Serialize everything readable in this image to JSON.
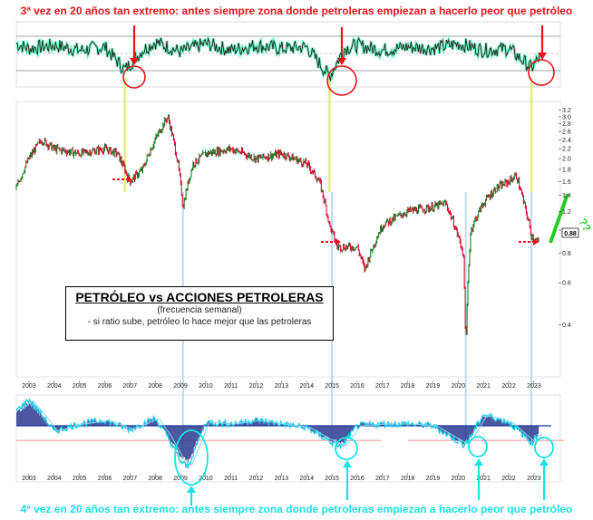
{
  "top_annotation": "3ª vez en 20 años tan extremo: antes siempre zona donde petroleras empiezan a hacerlo peor que petróleo",
  "bottom_annotation": "4ª vez en 20 años tan extremo: antes siempre zona donde petroleras empiezan a hacerlo peor que petróleo",
  "legend": {
    "title": "PETRÓLEO vs ACCIONES PETROLERAS",
    "line1": "(frecuencia semanal)",
    "line2": "- si ratio sube, petróleo lo hace mejor que las petroleras"
  },
  "last_value_label": "0.88",
  "question_marks": "??",
  "colors": {
    "top_annotation": "#e8141b",
    "bottom_annotation": "#19e3e3",
    "arrow_red": "#e8141b",
    "arrow_cyan": "#19e3e3",
    "yellow_line": "#e6ee8a",
    "blue_line": "#b8dcef",
    "green_projection": "#22cc22",
    "candle_up": "#1f7a1f",
    "candle_down": "#d0103a",
    "oscillator_fill": "#2b3a8f",
    "oscillator_line": "#1ec8e6",
    "threshold_line": "#f4a0a0",
    "top_osc_line": "#1a2a1a",
    "top_osc_fill": "#3ee8b0"
  },
  "chart_data": [
    {
      "type": "line",
      "name": "top-oscillator",
      "x": [
        2002.5,
        2003,
        2004,
        2005,
        2006,
        2006.8,
        2007.5,
        2008,
        2009,
        2010,
        2011,
        2012,
        2013,
        2014,
        2014.9,
        2015.5,
        2016,
        2017,
        2018,
        2019,
        2020,
        2021,
        2022,
        2022.9,
        2023.2
      ],
      "y": [
        0.6,
        0.3,
        0.5,
        0.2,
        0.4,
        -1.0,
        0.2,
        0.7,
        0.1,
        0.6,
        0.2,
        0.5,
        0.3,
        0.4,
        -1.4,
        0.3,
        0.5,
        0.2,
        0.4,
        0.3,
        0.6,
        0.2,
        0.3,
        -0.9,
        -0.3
      ],
      "xlim": [
        2002.5,
        2023.4
      ]
    },
    {
      "type": "line",
      "name": "oil-vs-oil-stocks-ratio",
      "x": [
        2002.5,
        2003,
        2003.5,
        2004,
        2005,
        2006,
        2006.5,
        2007,
        2007.5,
        2008,
        2008.5,
        2008.9,
        2009.1,
        2009.5,
        2010,
        2011,
        2012,
        2013,
        2014,
        2014.5,
        2014.9,
        2015.2,
        2016,
        2016.3,
        2017,
        2018,
        2019,
        2019.5,
        2020.2,
        2020.3,
        2020.5,
        2021,
        2021.5,
        2022,
        2022.3,
        2022.6,
        2022.9,
        2023.2
      ],
      "y": [
        1.5,
        2.0,
        2.4,
        2.2,
        2.1,
        2.2,
        2.1,
        1.6,
        1.8,
        2.4,
        3.0,
        1.9,
        1.25,
        1.9,
        2.1,
        2.2,
        2.0,
        2.1,
        1.9,
        1.6,
        1.05,
        0.85,
        0.85,
        0.68,
        1.05,
        1.2,
        1.25,
        1.3,
        0.8,
        0.3,
        1.0,
        1.3,
        1.5,
        1.6,
        1.7,
        1.3,
        0.95,
        0.88
      ],
      "yticks": [
        0.4,
        0.6,
        0.8,
        1.0,
        1.2,
        1.4,
        1.6,
        1.8,
        2.0,
        2.2,
        2.4,
        2.6,
        2.8,
        3.0,
        3.2
      ],
      "ylim": [
        0.25,
        3.3
      ],
      "scale": "log"
    },
    {
      "type": "area",
      "name": "bottom-oscillator",
      "x": [
        2002.5,
        2003,
        2003.5,
        2004,
        2005,
        2006,
        2007,
        2008,
        2008.5,
        2009,
        2009.3,
        2010,
        2011,
        2012,
        2013,
        2014,
        2015,
        2015.4,
        2016,
        2017,
        2018,
        2019,
        2020.2,
        2020.4,
        2021,
        2022,
        2022.9,
        2023.2
      ],
      "y": [
        0.8,
        1.4,
        0.6,
        -0.3,
        0.1,
        0.3,
        -0.2,
        0.4,
        -0.6,
        -1.9,
        -2.2,
        0.2,
        0.1,
        0.3,
        0.1,
        -0.1,
        -0.9,
        -1.1,
        0.0,
        0.1,
        0.1,
        0.0,
        -1.0,
        -0.8,
        0.6,
        0.2,
        -0.9,
        -0.4
      ],
      "threshold": -0.9,
      "ylim": [
        -2.6,
        1.8
      ]
    }
  ],
  "x_axis_years": [
    "2003",
    "2004",
    "2005",
    "2006",
    "2007",
    "2008",
    "2009",
    "2010",
    "2011",
    "2012",
    "2013",
    "2014",
    "2015",
    "2016",
    "2017",
    "2018",
    "2019",
    "2020",
    "2021",
    "2022",
    "2023"
  ]
}
